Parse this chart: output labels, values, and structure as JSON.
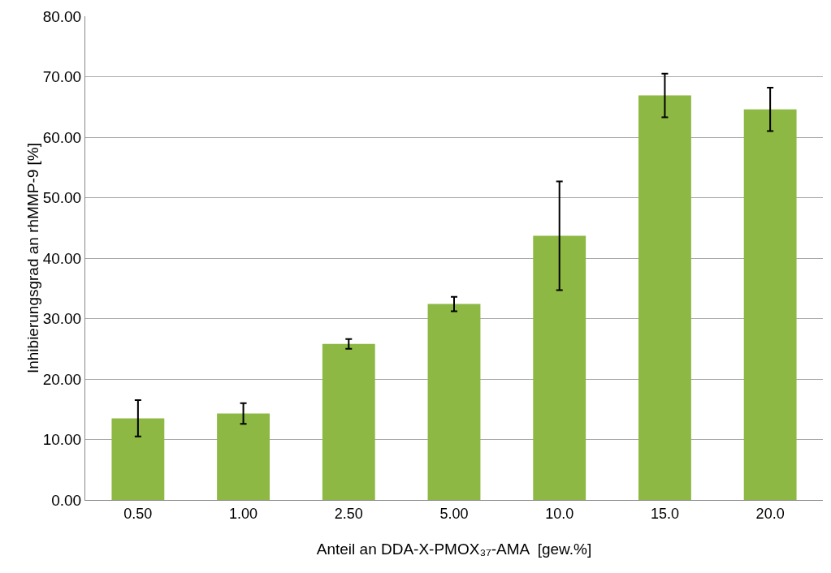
{
  "chart_data": {
    "type": "bar",
    "xlabel": "Anteil an DDA-X-PMOX₃₇-AMA  [gew.%]",
    "ylabel": "Inhibierungsgrad an rhMMP-9 [%]",
    "categories": [
      "0.50",
      "1.00",
      "2.50",
      "5.00",
      "10.0",
      "15.0",
      "20.0"
    ],
    "values": [
      13.5,
      14.3,
      25.8,
      32.4,
      43.7,
      66.9,
      64.6
    ],
    "errors": [
      3.0,
      1.7,
      0.8,
      1.2,
      9.0,
      3.6,
      3.6
    ],
    "color": "#8db843",
    "ylim": [
      0,
      80
    ],
    "yticks": [
      {
        "value": 0,
        "label": "0.00"
      },
      {
        "value": 10,
        "label": "10.00"
      },
      {
        "value": 20,
        "label": "20.00"
      },
      {
        "value": 30,
        "label": "30.00"
      },
      {
        "value": 40,
        "label": "40.00"
      },
      {
        "value": 50,
        "label": "50.00"
      },
      {
        "value": 60,
        "label": "60.00"
      },
      {
        "value": 70,
        "label": "70.00"
      },
      {
        "value": 80,
        "label": "80.00"
      }
    ],
    "grid": "y"
  }
}
